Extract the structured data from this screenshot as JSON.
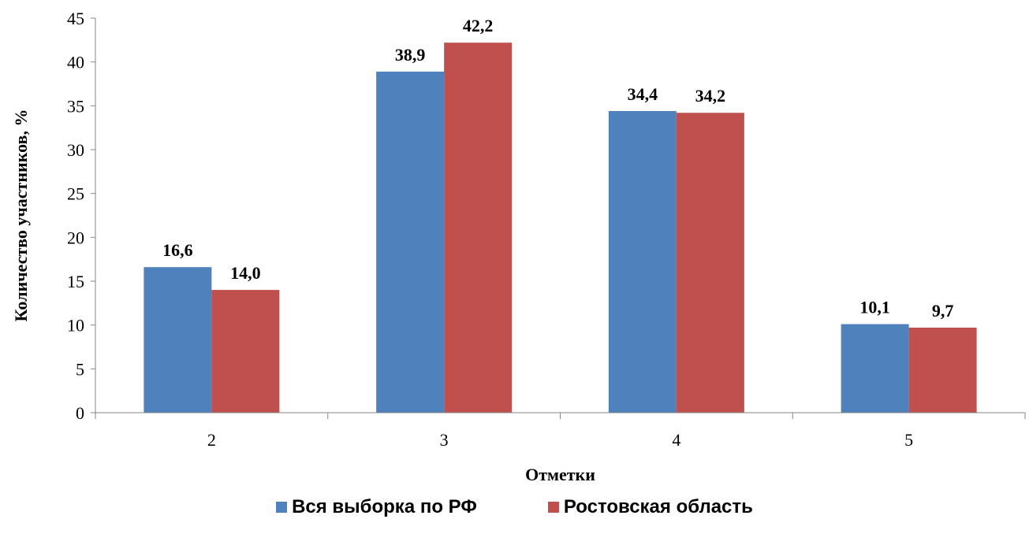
{
  "chart_data": {
    "type": "bar",
    "categories": [
      "2",
      "3",
      "4",
      "5"
    ],
    "series": [
      {
        "name": "Вся выборка по РФ",
        "values": [
          16.6,
          38.9,
          34.4,
          10.1
        ],
        "labels": [
          "16,6",
          "38,9",
          "34,4",
          "10,1"
        ],
        "color": "#4F81BD"
      },
      {
        "name": "Ростовская область",
        "values": [
          14.0,
          42.2,
          34.2,
          9.7
        ],
        "labels": [
          "14,0",
          "42,2",
          "34,2",
          "9,7"
        ],
        "color": "#C0504D"
      }
    ],
    "title": "",
    "xlabel": "Отметки",
    "ylabel": "Количество участников, %",
    "ylim": [
      0,
      45
    ],
    "yticks": [
      0,
      5,
      10,
      15,
      20,
      25,
      30,
      35,
      40,
      45
    ],
    "grid": false,
    "legend_position": "bottom"
  }
}
